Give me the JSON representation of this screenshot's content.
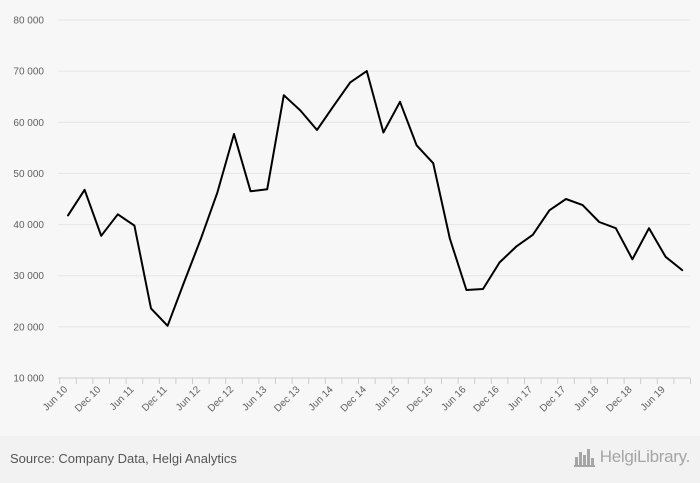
{
  "chart_data": {
    "type": "line",
    "title": "",
    "xlabel": "",
    "ylabel": "",
    "ylim": [
      10000,
      80000
    ],
    "y_ticks": [
      10000,
      20000,
      30000,
      40000,
      50000,
      60000,
      70000,
      80000
    ],
    "y_tick_labels": [
      "10 000",
      "20 000",
      "30 000",
      "40 000",
      "50 000",
      "60 000",
      "70 000",
      "80 000"
    ],
    "grid": true,
    "legend": "none",
    "x_tick_labels": [
      "Jun 10",
      "Dec 10",
      "Jun 11",
      "Dec 11",
      "Jun 12",
      "Dec 12",
      "Jun 13",
      "Dec 13",
      "Jun 14",
      "Dec 14",
      "Jun 15",
      "Dec 15",
      "Jun 16",
      "Dec 16",
      "Jun 17",
      "Dec 17",
      "Jun 18",
      "Dec 18",
      "Jun 19"
    ],
    "series": [
      {
        "color": "#000000",
        "x": [
          "Jun 10",
          "Sep 10",
          "Dec 10",
          "Mar 11",
          "Jun 11",
          "Sep 11",
          "Dec 11",
          "Mar 12",
          "Jun 12",
          "Sep 12",
          "Dec 12",
          "Mar 13",
          "Jun 13",
          "Sep 13",
          "Dec 13",
          "Mar 14",
          "Jun 14",
          "Sep 14",
          "Dec 14",
          "Mar 15",
          "Jun 15",
          "Sep 15",
          "Dec 15",
          "Mar 16",
          "Jun 16",
          "Sep 16",
          "Dec 16",
          "Mar 17",
          "Jun 17",
          "Sep 17",
          "Dec 17",
          "Mar 18",
          "Jun 18",
          "Sep 18",
          "Dec 18",
          "Mar 19",
          "Jun 19",
          "Sep 19"
        ],
        "values": [
          41800,
          46800,
          37800,
          42000,
          39800,
          23600,
          20200,
          28800,
          37200,
          46300,
          57700,
          46500,
          46900,
          65300,
          62300,
          58500,
          63200,
          67800,
          70000,
          58000,
          64000,
          55500,
          52000,
          37300,
          27200,
          27400,
          32600,
          35700,
          38000,
          42800,
          45000,
          43800,
          40500,
          39300,
          33200,
          39300,
          33700,
          31100
        ]
      }
    ]
  },
  "footer": {
    "source": "Source: Company Data, Helgi Analytics",
    "logo_text": "HelgiLibrary.",
    "logo_icon": "bar-chart-icon"
  },
  "colors": {
    "background": "#f7f7f7",
    "grid": "#e6e6e6",
    "line": "#000000",
    "footer_text": "#555555",
    "logo": "#a5a5a5"
  }
}
